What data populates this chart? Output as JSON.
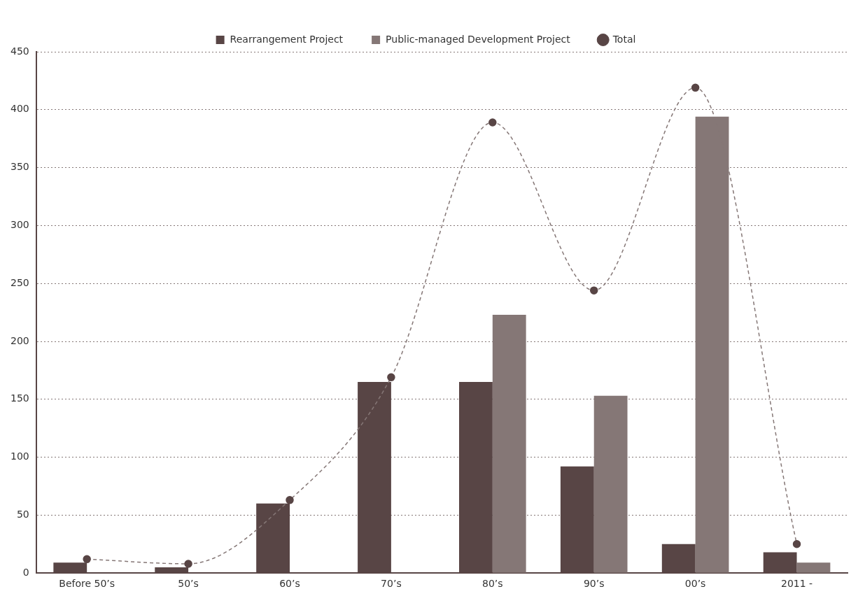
{
  "chart_data": {
    "type": "bar",
    "categories": [
      "Before 50’s",
      "50’s",
      "60’s",
      "70’s",
      "80’s",
      "90’s",
      "00’s",
      "2011 -"
    ],
    "series": [
      {
        "name": "Rearrangement Project",
        "color": "#584545",
        "values": [
          9,
          5,
          60,
          165,
          165,
          92,
          25,
          18
        ]
      },
      {
        "name": "Public-managed Development Project",
        "color": "#857776",
        "values": [
          null,
          null,
          null,
          null,
          223,
          153,
          394,
          9
        ]
      },
      {
        "name": "Total",
        "type": "line",
        "color": "#584545",
        "line_style": "dashed",
        "marker": "circle",
        "values": [
          12,
          8,
          63,
          169,
          389,
          244,
          419,
          25
        ]
      }
    ],
    "ylim": [
      0,
      450
    ],
    "yticks": [
      0,
      50,
      100,
      150,
      200,
      250,
      300,
      350,
      400,
      450
    ],
    "grid": "y",
    "legend": "top"
  }
}
